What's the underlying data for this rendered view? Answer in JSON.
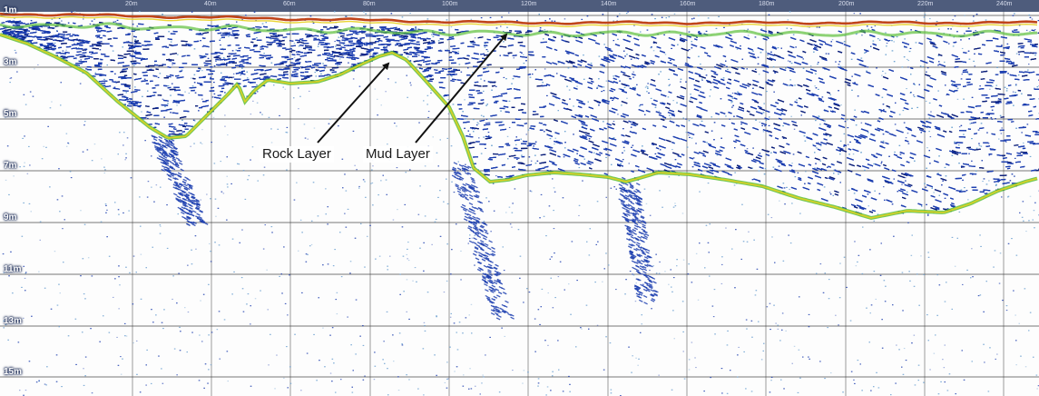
{
  "echogram": {
    "depth_labels": [
      "1m",
      "3m",
      "5m",
      "7m",
      "9m",
      "11m",
      "13m",
      "15m"
    ],
    "distance_labels": [
      "20m",
      "40m",
      "60m",
      "80m",
      "100m",
      "120m",
      "140m",
      "160m",
      "180m",
      "200m",
      "220m",
      "240m"
    ],
    "annotations": {
      "rock_layer": "Rock Layer",
      "mud_layer": "Mud Layer"
    },
    "colors": {
      "surface_band": "#3b4a6e",
      "bottom_return": "#c0451a",
      "strong_return": "#e8d020",
      "medium_return": "#5cbf3a",
      "weak_return": "#1d3fb0",
      "faint_return": "#6aa0d0",
      "grid": "#4a4a4a"
    }
  }
}
